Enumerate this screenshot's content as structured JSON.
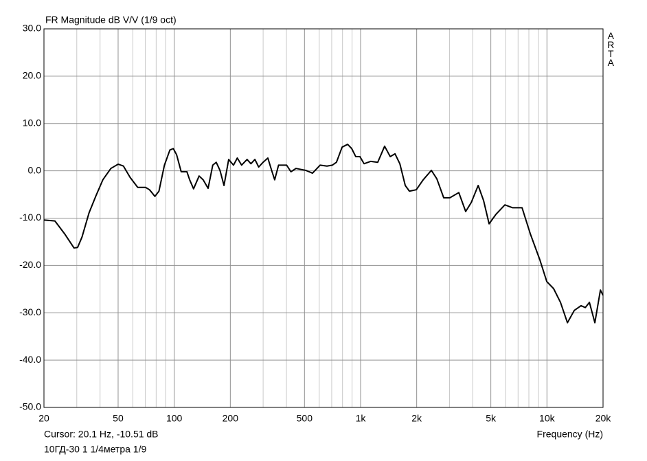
{
  "chart_data": {
    "type": "line",
    "title": "FR Magnitude dB V/V (1/9 oct)",
    "watermark": "ARTA",
    "cursor_text": "Cursor: 20.1 Hz, -10.51 dB",
    "xlabel": "Frequency (Hz)",
    "note": "10ГД-30 1 1/4метра 1/9",
    "xscale": "log",
    "grid": true,
    "xlim": [
      20,
      20000
    ],
    "ylim": [
      -50,
      30
    ],
    "xticks": [
      20,
      50,
      100,
      200,
      500,
      {
        "value": 1000,
        "label": "1k"
      },
      {
        "value": 2000,
        "label": "2k"
      },
      {
        "value": 5000,
        "label": "5k"
      },
      {
        "value": 10000,
        "label": "10k"
      },
      {
        "value": 20000,
        "label": "20k"
      }
    ],
    "xminorticks": [
      30,
      40,
      60,
      70,
      80,
      90,
      300,
      400,
      600,
      700,
      800,
      900,
      3000,
      4000,
      6000,
      7000,
      8000,
      9000
    ],
    "yticks": [
      {
        "value": -50,
        "label": "-50.0"
      },
      {
        "value": -40,
        "label": "-40.0"
      },
      {
        "value": -30,
        "label": "-30.0"
      },
      {
        "value": -20,
        "label": "-20.0"
      },
      {
        "value": -10,
        "label": "-10.0"
      },
      {
        "value": 0,
        "label": "0.0"
      },
      {
        "value": 10,
        "label": "10.0"
      },
      {
        "value": 20,
        "label": "20.0"
      },
      {
        "value": 30,
        "label": "30.0"
      }
    ],
    "x": [
      20,
      22.9,
      25.8,
      29,
      30.3,
      32,
      34.9,
      38,
      41.4,
      45.7,
      50,
      53.4,
      58,
      63.7,
      70.2,
      73.7,
      78.8,
      82.8,
      88.6,
      94.8,
      98.9,
      103,
      109,
      117,
      121,
      127,
      136,
      143,
      152,
      161,
      168,
      176,
      185,
      196,
      208,
      218,
      230,
      246,
      258,
      271,
      284,
      298,
      318,
      335,
      346,
      363,
      401,
      423,
      450,
      508,
      552,
      607,
      660,
      706,
      742,
      796,
      852,
      896,
      942,
      992,
      1044,
      1135,
      1236,
      1346,
      1442,
      1530,
      1624,
      1737,
      1828,
      1990,
      2168,
      2398,
      2566,
      2793,
      3014,
      3366,
      3664,
      3925,
      4276,
      4572,
      4893,
      5325,
      5948,
      6532,
      7352,
      8140,
      9160,
      9980,
      10860,
      11820,
      12880,
      14020,
      15240,
      16070,
      16900,
      18080,
      19360,
      20000
    ],
    "series": [
      {
        "name": "10ГД-30",
        "color": "#000000",
        "values": [
          -10.4,
          -10.6,
          -13.3,
          -16.3,
          -16.2,
          -14,
          -8.9,
          -5.3,
          -1.9,
          0.5,
          1.4,
          1,
          -1.4,
          -3.5,
          -3.5,
          -4,
          -5.4,
          -4.3,
          1.2,
          4.4,
          4.7,
          3.4,
          -0.2,
          -0.2,
          -1.9,
          -3.8,
          -1.1,
          -1.9,
          -3.7,
          1.2,
          1.8,
          0.1,
          -3.1,
          2.4,
          1.2,
          2.7,
          1.2,
          2.4,
          1.5,
          2.4,
          0.8,
          1.7,
          2.7,
          -0.2,
          -1.9,
          1.2,
          1.2,
          -0.2,
          0.5,
          0.1,
          -0.5,
          1.2,
          1,
          1.2,
          1.8,
          5,
          5.6,
          4.7,
          3,
          3,
          1.5,
          2,
          1.8,
          5.2,
          3,
          3.6,
          1.5,
          -3.1,
          -4.3,
          -4,
          -1.9,
          0.1,
          -1.7,
          -5.7,
          -5.7,
          -4.6,
          -8.6,
          -6.7,
          -3.1,
          -6.3,
          -11.2,
          -9.2,
          -7.2,
          -7.8,
          -7.8,
          -13.3,
          -18.8,
          -23.4,
          -24.9,
          -27.8,
          -32.1,
          -29.5,
          -28.5,
          -28.9,
          -27.8,
          -32.1,
          -25.2,
          -26.3
        ]
      }
    ]
  }
}
